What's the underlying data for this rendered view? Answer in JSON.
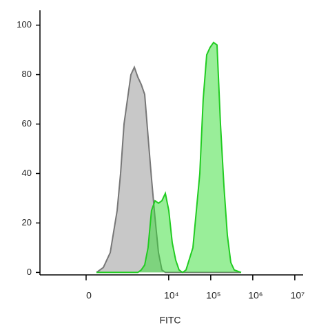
{
  "chart_data": {
    "type": "area",
    "x_label": "FITC",
    "x_scale": "biexponential",
    "x": [
      130,
      237,
      378,
      573,
      699,
      851,
      1033,
      1252,
      1519,
      1834,
      2215,
      2680,
      3233,
      3906,
      4730,
      5707,
      6901,
      8333,
      10047,
      12130,
      14648,
      17686,
      21375,
      25823,
      37650,
      54901,
      66185,
      80073,
      96565,
      116746,
      141050,
      170345,
      205716,
      248465,
      300111,
      362173,
      528395
    ],
    "series": [
      {
        "color": "#777777",
        "fill": "#c8c8c8",
        "values": [
          0,
          2,
          8,
          25,
          40,
          60,
          70,
          80,
          83,
          79,
          76,
          72,
          55,
          38,
          22,
          8,
          1,
          0,
          0,
          0,
          0,
          0,
          0,
          0,
          0,
          0,
          0,
          0,
          0,
          0,
          0,
          0,
          0,
          0,
          0,
          0,
          0
        ]
      },
      {
        "color": "#22cc22",
        "fill": "#33dd33",
        "values": [
          0,
          0,
          0,
          0,
          0,
          0,
          0,
          0,
          0,
          0,
          1,
          3,
          10,
          25,
          29,
          28,
          29,
          32,
          25,
          12,
          5,
          1,
          0,
          1,
          10,
          40,
          70,
          88,
          91,
          93,
          92,
          60,
          35,
          15,
          4,
          1,
          0
        ]
      }
    ],
    "xlim": [
      -1350,
      15800000
    ],
    "xticks": [
      0,
      {
        "value": 10000,
        "label": "10⁴"
      },
      {
        "value": 100000,
        "label": "10⁵"
      },
      {
        "value": 1000000,
        "label": "10⁶"
      },
      {
        "value": 10000000,
        "label": "10⁷"
      }
    ],
    "ylim": [
      -1,
      106
    ],
    "yticks": [
      0,
      20,
      40,
      60,
      80,
      100
    ]
  }
}
